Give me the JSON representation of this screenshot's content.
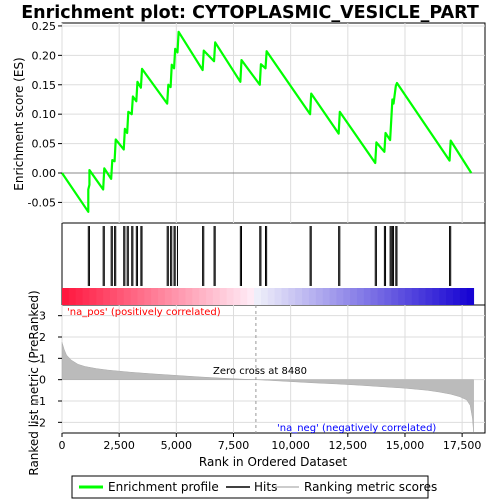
{
  "chart_data": {
    "type": "line",
    "title": "Enrichment plot: CYTOPLASMIC_VESICLE_PART",
    "xlabel": "Rank in Ordered Dataset",
    "ylabel_top": "Enrichment score (ES)",
    "ylabel_bottom": "Ranked list metric (PreRanked)",
    "xlim": [
      0,
      18500
    ],
    "x_ticks": [
      0,
      2500,
      5000,
      7500,
      10000,
      12500,
      15000,
      17500
    ],
    "x_tick_labels": [
      "0",
      "2,500",
      "5,000",
      "7,500",
      "10,000",
      "12,500",
      "15,000",
      "17,500"
    ],
    "es_ylim": [
      -0.085,
      0.255
    ],
    "es_ticks": [
      -0.05,
      0.0,
      0.05,
      0.1,
      0.15,
      0.2,
      0.25
    ],
    "es_tick_labels": [
      "-0.05",
      "0.00",
      "0.05",
      "0.10",
      "0.15",
      "0.20",
      "0.25"
    ],
    "metric_ylim": [
      -2.5,
      3.5
    ],
    "metric_ticks": [
      -2,
      -1,
      0,
      1,
      2,
      3
    ],
    "metric_tick_labels": [
      "-2",
      "-1",
      "0",
      "1",
      "2",
      "3"
    ],
    "series": [
      {
        "name": "Enrichment profile",
        "color": "#00ff00",
        "x": [
          0,
          1150,
          1150,
          1200,
          1200,
          1800,
          1850,
          2150,
          2200,
          2300,
          2350,
          2700,
          2750,
          2850,
          2900,
          3050,
          3100,
          3250,
          3300,
          3450,
          3500,
          4600,
          4650,
          4750,
          4800,
          4900,
          4950,
          5050,
          5100,
          6150,
          6200,
          6650,
          6700,
          7800,
          7850,
          8650,
          8700,
          8900,
          8950,
          10850,
          10900,
          12100,
          12150,
          13700,
          13750,
          14100,
          14150,
          14350,
          14400,
          14450,
          14500,
          14600,
          14650,
          16950,
          17000,
          17900
        ],
        "y": [
          0.0,
          -0.066,
          -0.028,
          -0.02,
          0.005,
          -0.028,
          0.008,
          -0.01,
          0.022,
          0.02,
          0.057,
          0.04,
          0.075,
          0.068,
          0.104,
          0.1,
          0.13,
          0.122,
          0.155,
          0.145,
          0.177,
          0.118,
          0.15,
          0.146,
          0.184,
          0.178,
          0.211,
          0.205,
          0.24,
          0.175,
          0.208,
          0.19,
          0.222,
          0.155,
          0.192,
          0.15,
          0.185,
          0.178,
          0.207,
          0.1,
          0.135,
          0.067,
          0.104,
          0.017,
          0.052,
          0.036,
          0.068,
          0.056,
          0.09,
          0.125,
          0.118,
          0.148,
          0.153,
          0.021,
          0.055,
          0.0
        ]
      }
    ],
    "hits": [
      1150,
      1200,
      1800,
      1850,
      2150,
      2200,
      2300,
      2350,
      2700,
      2750,
      2850,
      2900,
      3050,
      3100,
      3250,
      3300,
      3450,
      3500,
      4600,
      4650,
      4750,
      4800,
      4900,
      4950,
      5050,
      6150,
      6200,
      6650,
      6700,
      7800,
      7850,
      8650,
      8700,
      8900,
      8950,
      10850,
      10900,
      12100,
      12150,
      13700,
      13750,
      14100,
      14150,
      14350,
      14400,
      14450,
      14500,
      14600,
      14650,
      16950,
      17000
    ],
    "metric": {
      "x": [
        0,
        100,
        200,
        400,
        700,
        1000,
        1500,
        2000,
        3000,
        4000,
        5000,
        6000,
        7000,
        8000,
        8480,
        9000,
        10000,
        11000,
        12000,
        13000,
        14000,
        15000,
        15500,
        16000,
        16500,
        17000,
        17400,
        17700,
        17850,
        17950,
        18000
      ],
      "y": [
        1.75,
        1.4,
        1.15,
        0.92,
        0.72,
        0.62,
        0.52,
        0.45,
        0.35,
        0.27,
        0.2,
        0.13,
        0.07,
        0.02,
        0.0,
        -0.03,
        -0.09,
        -0.15,
        -0.2,
        -0.26,
        -0.33,
        -0.4,
        -0.45,
        -0.5,
        -0.58,
        -0.68,
        -0.8,
        -0.95,
        -1.2,
        -1.8,
        -2.45
      ]
    },
    "zero_cross": 8480,
    "annotations": {
      "pos_label": "'na_pos' (positively correlated)",
      "neg_label": "'na_neg' (negatively correlated)",
      "zero_label": "Zero cross at 8480"
    },
    "legend": {
      "placement": "bottom",
      "items": [
        {
          "label": "Enrichment profile",
          "color": "#00ff00"
        },
        {
          "label": "Hits",
          "color": "#000000"
        },
        {
          "label": "Ranking metric scores",
          "color": "#bbbbbb"
        }
      ]
    },
    "colors": {
      "pos_label": "#ff0000",
      "neg_label": "#0000ff",
      "grid": "#dddddd"
    }
  }
}
